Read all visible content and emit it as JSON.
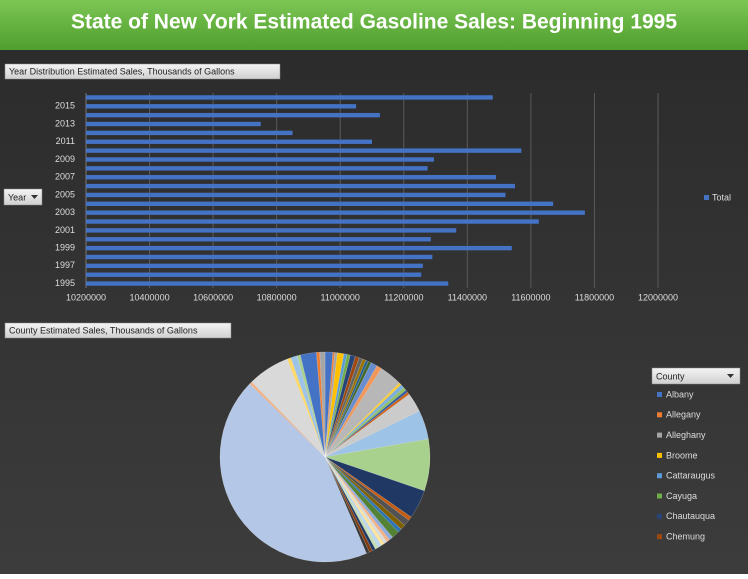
{
  "page_title": "State of New York  Estimated Gasoline Sales: Beginning 1995",
  "chart_data": [
    {
      "type": "bar",
      "orientation": "horizontal",
      "title": "Year Distribution   Estimated Sales, Thousands of Gallons",
      "filter_label": "Year",
      "categories": [
        "1995",
        null,
        "1997",
        null,
        "1999",
        null,
        "2001",
        null,
        "2003",
        null,
        "2005",
        null,
        "2007",
        null,
        "2009",
        null,
        "2011",
        null,
        "2013",
        null,
        "2015",
        null
      ],
      "series": [
        {
          "name": "Total",
          "color": "#4472c4",
          "values": [
            11340000,
            11255000,
            11260000,
            11290000,
            11540000,
            11285000,
            11365000,
            11625000,
            11770000,
            11670000,
            11520000,
            11550000,
            11490000,
            11275000,
            11295000,
            11570000,
            11100000,
            10850000,
            10750000,
            11125000,
            11050000,
            11480000
          ]
        }
      ],
      "xlim": [
        10200000,
        12000000
      ],
      "xticks": [
        10200000,
        10400000,
        10600000,
        10800000,
        11000000,
        11200000,
        11400000,
        11600000,
        11800000,
        12000000
      ],
      "grid": true,
      "legend": "right"
    },
    {
      "type": "pie",
      "title": "County Estimated Sales, Thousands of Gallons",
      "legend_title": "County",
      "categories": [
        "Albany",
        "Allegany",
        "Alleghany",
        "Broome",
        "Cattaraugus",
        "Cayuga",
        "Chautauqua",
        "Chemung",
        null,
        null,
        null,
        null,
        null,
        null,
        null,
        null,
        null,
        null,
        null,
        null,
        null,
        null,
        null,
        null,
        null,
        null,
        null,
        null,
        null,
        null,
        null,
        null,
        null,
        null,
        null,
        null,
        null,
        null,
        null,
        null,
        null,
        null,
        null,
        null,
        null,
        null,
        null
      ],
      "values": [
        1.2,
        0.3,
        0.4,
        1.0,
        0.5,
        0.5,
        0.8,
        0.6,
        0.6,
        0.5,
        0.4,
        0.5,
        1.0,
        0.8,
        3.5,
        0.4,
        0.6,
        0.5,
        0.4,
        0.4,
        3.0,
        4.5,
        8.0,
        4.5,
        0.6,
        1.0,
        0.8,
        0.6,
        1.2,
        0.6,
        0.5,
        0.5,
        0.5,
        0.6,
        0.5,
        0.5,
        0.5,
        0.5,
        44,
        0.4,
        6.5,
        0.6,
        1.0,
        0.5,
        2.5,
        0.5,
        0.8
      ],
      "colors": [
        "#4472c4",
        "#ed7d31",
        "#a5a5a5",
        "#ffc000",
        "#5b9bd5",
        "#70ad47",
        "#264478",
        "#9e480e",
        "#636363",
        "#997300",
        "#255e91",
        "#43682b",
        "#698ed0",
        "#f1975a",
        "#b7b7b7",
        "#ffcd33",
        "#7cafdd",
        "#8cc168",
        "#335aa1",
        "#d26012",
        "#cbcbcb",
        "#9dc3e6",
        "#a9d18e",
        "#1f3864",
        "#c55a11",
        "#525252",
        "#7f6000",
        "#2e75b6",
        "#548235",
        "#8faadc",
        "#f4b183",
        "#dbdbdb",
        "#ffe699",
        "#bdd7ee",
        "#c5e0b4",
        "#203864",
        "#843c0c",
        "#3a3a3a",
        "#b4c7e7",
        "#f4b183",
        "#d9d9d9",
        "#ffd966",
        "#9dc3e6",
        "#a9d18e",
        "#4472c4",
        "#ed7d31",
        "#a5a5a5"
      ],
      "legend": "right"
    }
  ]
}
